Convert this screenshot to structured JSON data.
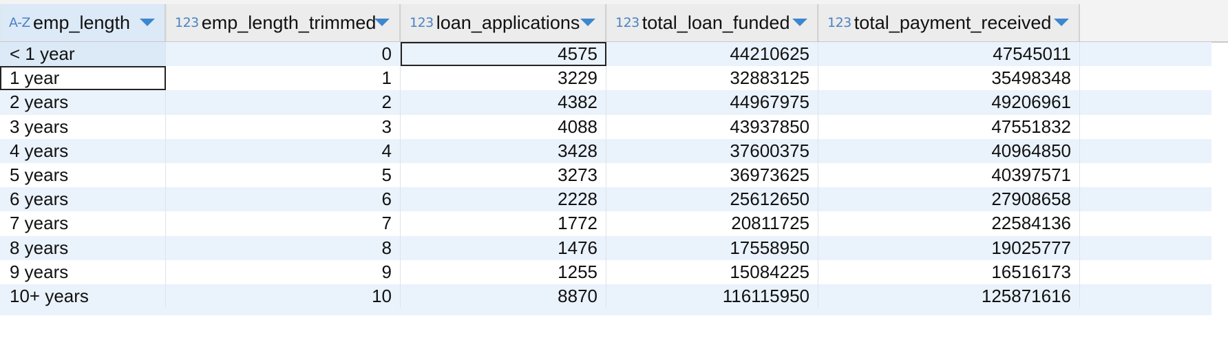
{
  "columns": [
    {
      "type_icon": "A-Z",
      "label": "emp_length",
      "align": "text"
    },
    {
      "type_icon": "123",
      "label": "emp_length_trimmed",
      "align": "num"
    },
    {
      "type_icon": "123",
      "label": "loan_applications",
      "align": "num"
    },
    {
      "type_icon": "123",
      "label": "total_loan_funded",
      "align": "num"
    },
    {
      "type_icon": "123",
      "label": "total_payment_received",
      "align": "num"
    }
  ],
  "rows": [
    [
      "< 1 year",
      "0",
      "4575",
      "44210625",
      "47545011"
    ],
    [
      "1 year",
      "1",
      "3229",
      "32883125",
      "35498348"
    ],
    [
      "2 years",
      "2",
      "4382",
      "44967975",
      "49206961"
    ],
    [
      "3 years",
      "3",
      "4088",
      "43937850",
      "47551832"
    ],
    [
      "4 years",
      "4",
      "3428",
      "37600375",
      "40964850"
    ],
    [
      "5 years",
      "5",
      "3273",
      "36973625",
      "40397571"
    ],
    [
      "6 years",
      "6",
      "2228",
      "25612650",
      "27908658"
    ],
    [
      "7 years",
      "7",
      "1772",
      "20811725",
      "22584136"
    ],
    [
      "8 years",
      "8",
      "1476",
      "17558950",
      "19025777"
    ],
    [
      "9 years",
      "9",
      "1255",
      "15084225",
      "16516173"
    ],
    [
      "10+ years",
      "10",
      "8870",
      "116115950",
      "125871616"
    ]
  ]
}
